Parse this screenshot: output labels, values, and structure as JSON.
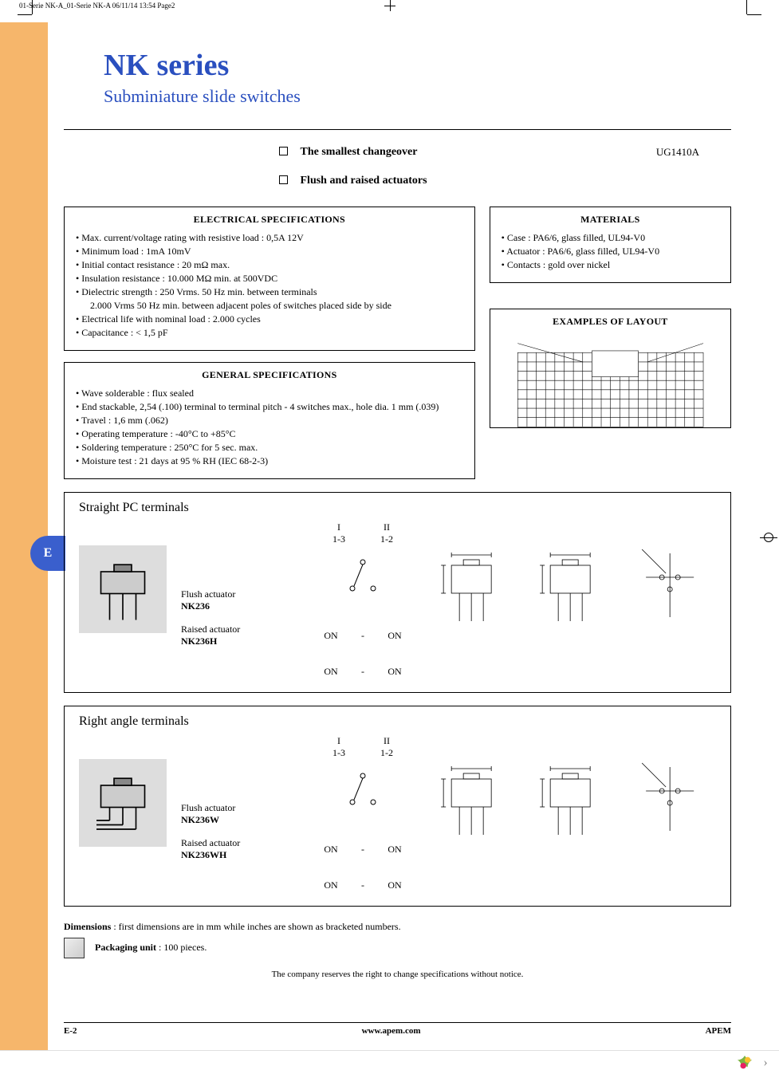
{
  "meta": {
    "print_header": "01-Serie NK-A_01-Serie NK-A  06/11/14  13:54  Page2"
  },
  "tab_letter": "E",
  "header": {
    "series_title": "NK series",
    "subtitle": "Subminiature slide switches"
  },
  "docref": "UG1410A",
  "features": [
    "The smallest changeover",
    "Flush and raised actuators"
  ],
  "electrical": {
    "title": "ELECTRICAL SPECIFICATIONS",
    "items": [
      "Max. current/voltage rating with resistive load : 0,5A 12V",
      "Minimum load : 1mA 10mV",
      "Initial contact resistance : 20 mΩ max.",
      "Insulation resistance : 10.000 MΩ min. at 500VDC",
      "Dielectric strength : 250 Vrms. 50 Hz min. between terminals",
      "2.000 Vrms 50 Hz min. between adjacent poles of switches placed side by side",
      "Electrical life with nominal load : 2.000 cycles",
      "Capacitance : < 1,5 pF"
    ],
    "sub_indices": [
      5
    ]
  },
  "general": {
    "title": "GENERAL SPECIFICATIONS",
    "items": [
      "Wave solderable : flux sealed",
      "End stackable, 2,54 (.100) terminal to terminal pitch - 4 switches max., hole dia. 1 mm (.039)",
      "Travel : 1,6 mm (.062)",
      "Operating temperature : -40°C to +85°C",
      "Soldering temperature : 250°C for 5 sec. max.",
      "Moisture test : 21 days at 95 % RH (IEC 68-2-3)"
    ]
  },
  "materials": {
    "title": "MATERIALS",
    "items": [
      "Case : PA6/6, glass filled, UL94-V0",
      "Actuator : PA6/6, glass filled, UL94-V0",
      "Contacts : gold over nickel"
    ]
  },
  "layout_title": "EXAMPLES OF LAYOUT",
  "state_header": {
    "col1": "I",
    "col2": "II",
    "sub1": "1-3",
    "sub2": "1-2"
  },
  "onrow": {
    "c1": "ON",
    "c2": "-",
    "c3": "ON"
  },
  "sections": [
    {
      "title": "Straight PC terminals",
      "variants": [
        {
          "label": "Flush actuator",
          "code": "NK236"
        },
        {
          "label": "Raised actuator",
          "code": "NK236H"
        }
      ]
    },
    {
      "title": "Right angle terminals",
      "variants": [
        {
          "label": "Flush actuator",
          "code": "NK236W"
        },
        {
          "label": "Raised actuator",
          "code": "NK236WH"
        }
      ]
    }
  ],
  "dimensions_note": {
    "label": "Dimensions",
    "text": ": first dimensions are in mm while inches are shown as bracketed numbers."
  },
  "packaging": {
    "label": "Packaging unit",
    "text": ": 100 pieces."
  },
  "disclaimer": "The company reserves the right to change specifications without notice.",
  "footer": {
    "page": "E-2",
    "site": "www.apem.com",
    "brand": "APEM"
  },
  "colors": {
    "orange": "#f6b66b",
    "blue": "#2a4fbf",
    "tab_blue": "#3a5fcd"
  }
}
